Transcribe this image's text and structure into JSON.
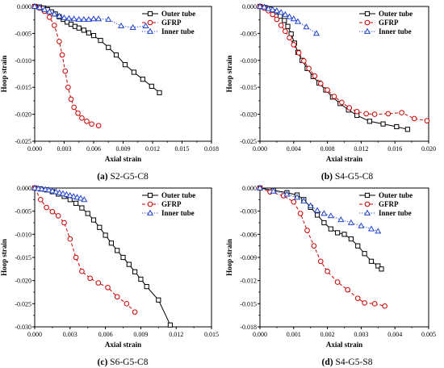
{
  "chart_data": [
    {
      "panel_letter": "(a)",
      "caption": "S2-G5-C8",
      "type": "line",
      "xlabel": "Axial strain",
      "ylabel": "Hoop strain",
      "xlim": [
        0,
        0.018
      ],
      "ylim": [
        -0.025,
        0
      ],
      "xticks": [
        "0.000",
        "0.003",
        "0.006",
        "0.009",
        "0.012",
        "0.015",
        "0.018"
      ],
      "yticks": [
        "0.000",
        "-0.005",
        "-0.010",
        "-0.015",
        "-0.020",
        "-0.025"
      ],
      "legend_position": "top-right",
      "series": [
        {
          "name": "Outer tube",
          "color": "#000000",
          "marker": "square",
          "dash": "solid",
          "x": [
            0,
            0.0005,
            0.0009,
            0.0013,
            0.0017,
            0.0021,
            0.0025,
            0.0029,
            0.0033,
            0.0037,
            0.0041,
            0.0045,
            0.005,
            0.0055,
            0.006,
            0.0067,
            0.0075,
            0.0083,
            0.0092,
            0.0101,
            0.011,
            0.0119,
            0.0127
          ],
          "y": [
            0,
            -0.0001,
            -0.0003,
            -0.0006,
            -0.001,
            -0.0014,
            -0.0019,
            -0.0024,
            -0.0029,
            -0.0033,
            -0.0037,
            -0.004,
            -0.0044,
            -0.0049,
            -0.0054,
            -0.0063,
            -0.0076,
            -0.009,
            -0.0108,
            -0.0122,
            -0.0135,
            -0.0148,
            -0.016
          ]
        },
        {
          "name": "GFRP",
          "color": "#cc0000",
          "marker": "circle",
          "dash": "dashed",
          "x": [
            0,
            0.0005,
            0.001,
            0.0015,
            0.002,
            0.0025,
            0.0028,
            0.0031,
            0.0034,
            0.0037,
            0.004,
            0.0044,
            0.0048,
            0.0053,
            0.0058,
            0.0065
          ],
          "y": [
            0,
            -0.0003,
            -0.0009,
            -0.002,
            -0.0035,
            -0.0065,
            -0.009,
            -0.012,
            -0.015,
            -0.0172,
            -0.0187,
            -0.0198,
            -0.0207,
            -0.0213,
            -0.0218,
            -0.0221
          ]
        },
        {
          "name": "Inner tube",
          "color": "#2244cc",
          "marker": "triangle",
          "dash": "dotted",
          "x": [
            0,
            0.0005,
            0.001,
            0.0015,
            0.002,
            0.0025,
            0.003,
            0.0035,
            0.004,
            0.0045,
            0.005,
            0.0055,
            0.006,
            0.0065,
            0.0075,
            0.0088,
            0.01,
            0.0113
          ],
          "y": [
            0,
            -0.0002,
            -0.0006,
            -0.001,
            -0.0014,
            -0.0018,
            -0.0021,
            -0.0022,
            -0.0023,
            -0.0024,
            -0.0024,
            -0.0024,
            -0.0023,
            -0.0023,
            -0.0024,
            -0.0036,
            -0.0039,
            -0.0036
          ]
        }
      ]
    },
    {
      "panel_letter": "(b)",
      "caption": "S4-G5-C8",
      "type": "line",
      "xlabel": "Axial strain",
      "ylabel": "Hoop strain",
      "xlim": [
        0,
        0.02
      ],
      "ylim": [
        -0.025,
        0
      ],
      "xticks": [
        "0.000",
        "0.004",
        "0.008",
        "0.012",
        "0.016",
        "0.020"
      ],
      "yticks": [
        "0.000",
        "-0.005",
        "-0.010",
        "-0.015",
        "-0.020",
        "-0.025"
      ],
      "legend_position": "top-right",
      "series": [
        {
          "name": "Outer tube",
          "color": "#000000",
          "marker": "square",
          "dash": "solid",
          "x": [
            0,
            0.0006,
            0.0012,
            0.0018,
            0.0024,
            0.0029,
            0.0033,
            0.0037,
            0.0041,
            0.0045,
            0.005,
            0.0056,
            0.0063,
            0.007,
            0.0078,
            0.0086,
            0.0095,
            0.0105,
            0.0115,
            0.013,
            0.0146,
            0.0162,
            0.0175
          ],
          "y": [
            0,
            -0.0002,
            -0.0005,
            -0.001,
            -0.0018,
            -0.0026,
            -0.0037,
            -0.0051,
            -0.0068,
            -0.0085,
            -0.01,
            -0.0115,
            -0.013,
            -0.0142,
            -0.0155,
            -0.0168,
            -0.018,
            -0.0192,
            -0.0202,
            -0.0213,
            -0.0218,
            -0.0223,
            -0.0228
          ]
        },
        {
          "name": "GFRP",
          "color": "#cc0000",
          "marker": "circle",
          "dash": "dashed",
          "x": [
            0,
            0.0005,
            0.001,
            0.0015,
            0.002,
            0.0025,
            0.003,
            0.0035,
            0.004,
            0.0046,
            0.0052,
            0.0058,
            0.0065,
            0.0072,
            0.008,
            0.0088,
            0.0097,
            0.0106,
            0.0115,
            0.0126,
            0.0136,
            0.0152,
            0.0168,
            0.0183,
            0.0198
          ],
          "y": [
            0,
            -0.0003,
            -0.0008,
            -0.0015,
            -0.0024,
            -0.0035,
            -0.0046,
            -0.0058,
            -0.0071,
            -0.0086,
            -0.0101,
            -0.0115,
            -0.0129,
            -0.0143,
            -0.0155,
            -0.0167,
            -0.0178,
            -0.0188,
            -0.0195,
            -0.0199,
            -0.02,
            -0.0199,
            -0.0197,
            -0.0208,
            -0.0212
          ]
        },
        {
          "name": "Inner tube",
          "color": "#2244cc",
          "marker": "triangle",
          "dash": "dotted",
          "x": [
            0,
            0.0005,
            0.001,
            0.0015,
            0.002,
            0.0025,
            0.003,
            0.0035,
            0.004,
            0.0045,
            0.0055,
            0.0067
          ],
          "y": [
            0,
            -0.0001,
            -0.0004,
            -0.0006,
            -0.0008,
            -0.0011,
            -0.0015,
            -0.0019,
            -0.0023,
            -0.0028,
            -0.0038,
            -0.005
          ]
        }
      ]
    },
    {
      "panel_letter": "(c)",
      "caption": "S6-G5-C8",
      "type": "line",
      "xlabel": "Axial strain",
      "ylabel": "Hoop strain",
      "xlim": [
        0,
        0.015
      ],
      "ylim": [
        -0.03,
        0
      ],
      "xticks": [
        "0.000",
        "0.003",
        "0.006",
        "0.009",
        "0.012",
        "0.015"
      ],
      "yticks": [
        "0.000",
        "-0.005",
        "-0.010",
        "-0.015",
        "-0.020",
        "-0.025",
        "-0.030"
      ],
      "legend_position": "top-right",
      "series": [
        {
          "name": "Outer tube",
          "color": "#000000",
          "marker": "square",
          "dash": "solid",
          "x": [
            0,
            0.0005,
            0.001,
            0.0015,
            0.002,
            0.0025,
            0.003,
            0.0035,
            0.004,
            0.0045,
            0.005,
            0.0055,
            0.006,
            0.0065,
            0.007,
            0.0075,
            0.008,
            0.0085,
            0.009,
            0.0095,
            0.0105,
            0.0115
          ],
          "y": [
            0,
            -0.0002,
            -0.0004,
            -0.0008,
            -0.0013,
            -0.0018,
            -0.0025,
            -0.0033,
            -0.0043,
            -0.0055,
            -0.0069,
            -0.0085,
            -0.0102,
            -0.0119,
            -0.0135,
            -0.015,
            -0.0165,
            -0.0181,
            -0.0197,
            -0.0213,
            -0.0242,
            -0.0296
          ]
        },
        {
          "name": "GFRP",
          "color": "#cc0000",
          "marker": "circle",
          "dash": "dashed",
          "x": [
            0,
            0.0005,
            0.001,
            0.0015,
            0.002,
            0.0025,
            0.003,
            0.0035,
            0.004,
            0.0047,
            0.0054,
            0.0062,
            0.007,
            0.0078,
            0.0085
          ],
          "y": [
            0,
            -0.0025,
            -0.0042,
            -0.0051,
            -0.006,
            -0.0075,
            -0.011,
            -0.015,
            -0.018,
            -0.0195,
            -0.0205,
            -0.0215,
            -0.0235,
            -0.025,
            -0.0268
          ]
        },
        {
          "name": "Inner tube",
          "color": "#2244cc",
          "marker": "triangle",
          "dash": "dotted",
          "x": [
            0,
            0.0003,
            0.0006,
            0.0009,
            0.0012,
            0.0015,
            0.0018,
            0.0021,
            0.0024,
            0.0027,
            0.003,
            0.0033,
            0.0036,
            0.0039,
            0.0042
          ],
          "y": [
            0,
            -0.0001,
            -0.0002,
            -0.0003,
            -0.0004,
            -0.0006,
            -0.0008,
            -0.001,
            -0.0012,
            -0.0014,
            -0.0016,
            -0.0018,
            -0.002,
            -0.0022,
            -0.0025
          ]
        }
      ]
    },
    {
      "panel_letter": "(d)",
      "caption": "S4-G5-S8",
      "type": "line",
      "xlabel": "Axial strain",
      "ylabel": "Hoop strain",
      "xlim": [
        0,
        0.005
      ],
      "ylim": [
        -0.018,
        0
      ],
      "xticks": [
        "0.000",
        "0.001",
        "0.002",
        "0.003",
        "0.004",
        "0.005"
      ],
      "yticks": [
        "0.000",
        "-0.003",
        "-0.006",
        "-0.009",
        "-0.012",
        "-0.015",
        "-0.018"
      ],
      "legend_position": "top-right",
      "series": [
        {
          "name": "Outer tube",
          "color": "#000000",
          "marker": "square",
          "dash": "solid",
          "x": [
            0,
            0.0004,
            0.0008,
            0.0011,
            0.0013,
            0.0015,
            0.0017,
            0.0019,
            0.0021,
            0.0023,
            0.0025,
            0.0027,
            0.0029,
            0.0031,
            0.0033,
            0.0035,
            0.0036
          ],
          "y": [
            0,
            -0.0003,
            -0.0006,
            -0.0009,
            -0.0015,
            -0.0025,
            -0.0035,
            -0.0045,
            -0.0053,
            -0.0058,
            -0.006,
            -0.0066,
            -0.0075,
            -0.0085,
            -0.0095,
            -0.0101,
            -0.0105
          ]
        },
        {
          "name": "GFRP",
          "color": "#cc0000",
          "marker": "circle",
          "dash": "dashed",
          "x": [
            0,
            0.0003,
            0.0007,
            0.001,
            0.0012,
            0.0014,
            0.0016,
            0.0018,
            0.002,
            0.0023,
            0.0026,
            0.0029,
            0.0031,
            0.0034,
            0.0037
          ],
          "y": [
            0,
            -0.0005,
            -0.001,
            -0.0018,
            -0.0033,
            -0.0055,
            -0.0075,
            -0.0095,
            -0.0108,
            -0.0122,
            -0.0132,
            -0.0143,
            -0.0149,
            -0.015,
            -0.0153
          ]
        },
        {
          "name": "Inner tube",
          "color": "#2244cc",
          "marker": "triangle",
          "dash": "dotted",
          "x": [
            0,
            0.0004,
            0.0008,
            0.0011,
            0.0013,
            0.0015,
            0.0017,
            0.0019,
            0.0021,
            0.0024,
            0.0027,
            0.003,
            0.0033,
            0.0035
          ],
          "y": [
            0,
            -0.0004,
            -0.0008,
            -0.0012,
            -0.0017,
            -0.0023,
            -0.0029,
            -0.0033,
            -0.0036,
            -0.0041,
            -0.0045,
            -0.0049,
            -0.0053,
            -0.0056
          ]
        }
      ]
    }
  ]
}
